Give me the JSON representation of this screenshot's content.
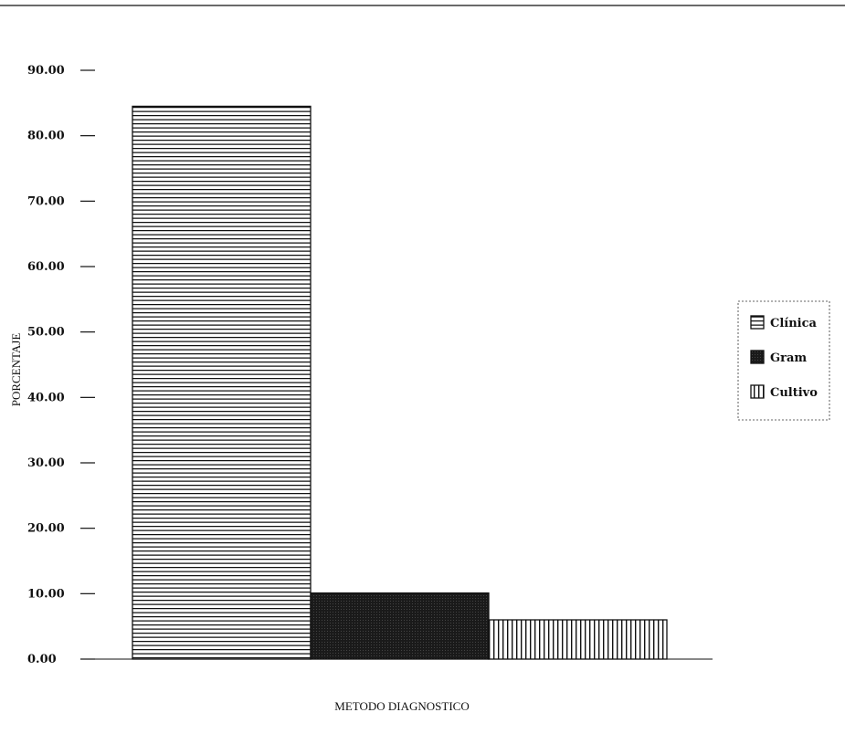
{
  "chart_data": {
    "type": "bar",
    "categories": [
      "Clínica",
      "Gram",
      "Cultivo"
    ],
    "values": [
      84.5,
      10.1,
      6.0
    ],
    "xlabel": "METODO DIAGNOSTICO",
    "ylabel": "PORCENTAJE",
    "ylim": [
      0,
      90
    ],
    "yticks": [
      "0.00",
      "10.00",
      "20.00",
      "30.00",
      "40.00",
      "50.00",
      "60.00",
      "70.00",
      "80.00",
      "90.00"
    ],
    "legend": {
      "position": "right",
      "entries": [
        {
          "label": "Clínica",
          "pattern": "horizontal-lines"
        },
        {
          "label": "Gram",
          "pattern": "solid-dark"
        },
        {
          "label": "Cultivo",
          "pattern": "vertical-lines"
        }
      ]
    },
    "grid": false,
    "colors": {
      "ink": "#111111",
      "background": "#ffffff"
    }
  }
}
